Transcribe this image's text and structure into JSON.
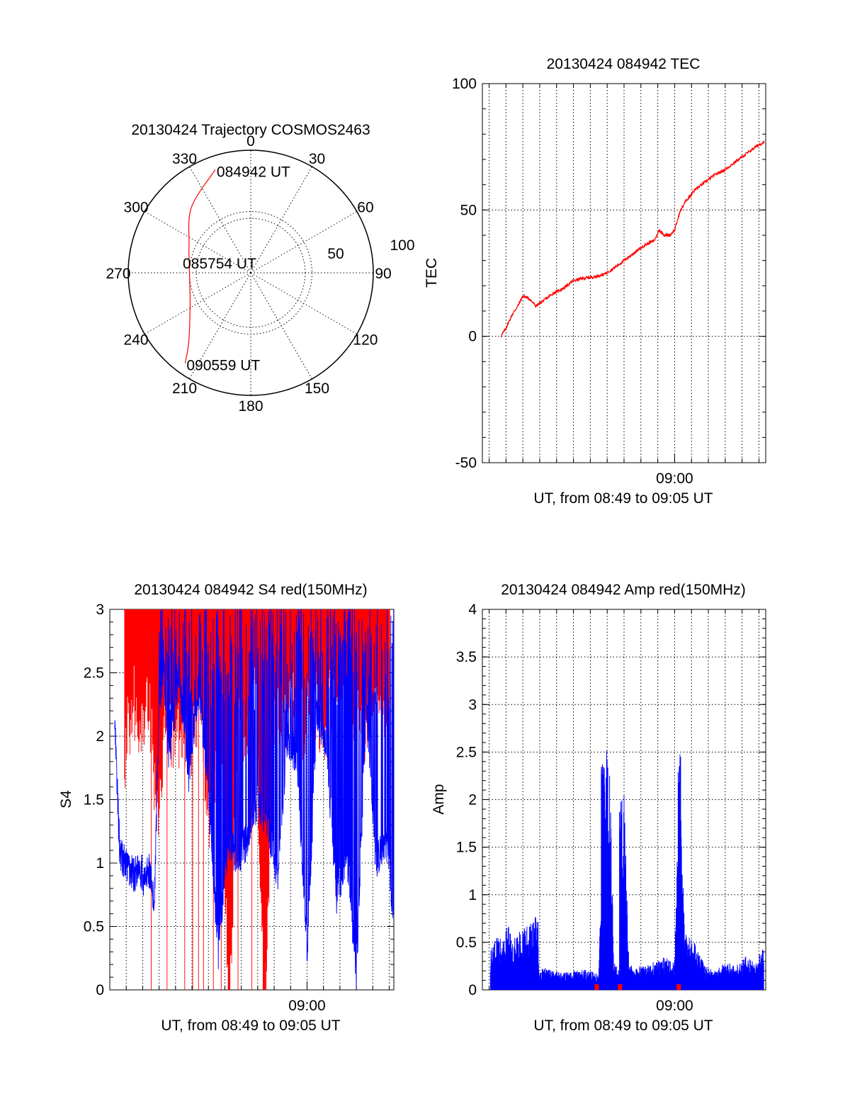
{
  "colors": {
    "red": "#ff0000",
    "blue": "#0000ff",
    "axis": "#000000",
    "background": "#ffffff"
  },
  "chart_data": [
    {
      "id": "trajectory",
      "type": "scatter",
      "projection": "polar",
      "title": "20130424 Trajectory COSMOS2463",
      "azimuth_labels": [
        "0",
        "30",
        "60",
        "90",
        "120",
        "150",
        "180",
        "210",
        "240",
        "270",
        "300",
        "330"
      ],
      "radius_labels": [
        "50",
        "100"
      ],
      "elevation_circles": [
        90,
        50,
        0
      ],
      "grid": true,
      "trajectory": {
        "color": "#ff0000",
        "points": [
          {
            "az": 341,
            "el": 10
          },
          {
            "az": 318,
            "el": 25
          },
          {
            "az": 295,
            "el": 40
          },
          {
            "az": 270,
            "el": 45
          },
          {
            "az": 243,
            "el": 40
          },
          {
            "az": 222,
            "el": 22
          },
          {
            "az": 216,
            "el": 8
          }
        ]
      },
      "annotations": [
        {
          "text": "084942 UT",
          "az": 341,
          "el": 10
        },
        {
          "text": "085754 UT",
          "az": 270,
          "el": 90
        },
        {
          "text": "090559 UT",
          "az": 216,
          "el": 8
        }
      ]
    },
    {
      "id": "tec",
      "type": "line",
      "title": "20130424 084942 TEC",
      "xlabel": "UT, from 08:49 to 09:05 UT",
      "ylabel": "TEC",
      "x_tick_labels": [
        {
          "time": "09:00",
          "value": 9.0
        }
      ],
      "x_range": [
        8.81,
        9.09
      ],
      "ylim": [
        -50,
        100
      ],
      "yticks": [
        -50,
        0,
        50,
        100
      ],
      "grid": true,
      "series": [
        {
          "color": "#ff0000",
          "x": [
            8.8283,
            8.833,
            8.84,
            8.845,
            8.85,
            8.856,
            8.863,
            8.87,
            8.88,
            8.89,
            8.9,
            8.91,
            8.92,
            8.93,
            8.94,
            8.95,
            8.96,
            8.97,
            8.98,
            8.985,
            8.99,
            8.995,
            9.0,
            9.005,
            9.01,
            9.02,
            9.03,
            9.04,
            9.05,
            9.06,
            9.07,
            9.08,
            9.0883
          ],
          "y": [
            0,
            3,
            9,
            12,
            16,
            15,
            12,
            14,
            17,
            19,
            22,
            23,
            23.5,
            24.5,
            27,
            30,
            33,
            36,
            38,
            42,
            40,
            40,
            42,
            49,
            53,
            58,
            61,
            64,
            66,
            69,
            72,
            75,
            77
          ]
        }
      ]
    },
    {
      "id": "s4",
      "type": "line",
      "title": "20130424 084942 S4 red(150MHz)",
      "xlabel": "UT, from 08:49 to 09:05 UT",
      "ylabel": "S4",
      "x_tick_labels": [
        {
          "time": "09:00",
          "value": 9.0
        }
      ],
      "x_range": [
        8.8,
        9.088
      ],
      "ylim": [
        0,
        3
      ],
      "yticks": [
        0,
        0.5,
        1,
        1.5,
        2,
        2.5,
        3
      ],
      "grid": true,
      "series": [
        {
          "color": "#ff0000",
          "x": [
            8.815,
            8.823,
            8.832,
            8.84,
            8.848,
            8.857,
            8.866,
            8.874,
            8.882,
            8.892,
            8.902,
            8.912,
            8.921,
            8.93,
            8.94,
            8.948,
            8.957,
            8.966,
            8.975,
            8.985,
            8.996,
            9.006,
            9.016,
            9.026,
            9.036,
            9.046,
            9.056,
            9.066,
            9.076,
            9.084
          ],
          "y": [
            2.15,
            2.6,
            2.35,
            2.55,
            1.65,
            2.5,
            2.25,
            2.4,
            2.2,
            2.5,
            1.5,
            2.35,
            0.0,
            2.45,
            2.2,
            2.6,
            0.0,
            2.5,
            2.3,
            2.55,
            2.4,
            2.6,
            2.35,
            2.65,
            2.45,
            2.55,
            2.3,
            2.6,
            2.4,
            2.2
          ]
        },
        {
          "color": "#0000ff",
          "x": [
            8.805,
            8.81,
            8.815,
            8.82,
            8.825,
            8.83,
            8.835,
            8.84,
            8.845,
            8.85,
            8.855,
            8.86,
            8.87,
            8.88,
            8.89,
            8.9,
            8.91,
            8.92,
            8.93,
            8.94,
            8.95,
            8.96,
            8.97,
            8.98,
            8.99,
            9.0,
            9.01,
            9.02,
            9.03,
            9.04,
            9.05,
            9.06,
            9.07,
            9.08,
            9.088
          ],
          "y": [
            2.1,
            1.1,
            1.0,
            0.95,
            0.9,
            1.0,
            0.85,
            0.95,
            0.65,
            2.3,
            2.5,
            1.8,
            2.5,
            1.7,
            2.4,
            1.6,
            0.3,
            1.2,
            1.0,
            1.2,
            1.5,
            1.3,
            0.9,
            2.0,
            1.8,
            0.3,
            2.2,
            1.9,
            0.7,
            1.1,
            0.1,
            2.3,
            1.0,
            1.2,
            0.6
          ]
        }
      ]
    },
    {
      "id": "amp",
      "type": "line",
      "title": "20130424 084942 Amp red(150MHz)",
      "xlabel": "UT, from 08:49 to 09:05 UT",
      "ylabel": "Amp",
      "x_tick_labels": [
        {
          "time": "09:00",
          "value": 9.0
        }
      ],
      "x_range": [
        8.81,
        9.09
      ],
      "ylim": [
        0,
        4
      ],
      "yticks": [
        0,
        0.5,
        1,
        1.5,
        2,
        2.5,
        3,
        3.5,
        4
      ],
      "grid": true,
      "series": [
        {
          "color": "#0000ff",
          "x": [
            8.818,
            8.825,
            8.83,
            8.835,
            8.84,
            8.845,
            8.85,
            8.855,
            8.86,
            8.865,
            8.866,
            8.87,
            8.88,
            8.89,
            8.9,
            8.91,
            8.92,
            8.925,
            8.93,
            8.935,
            8.94,
            8.945,
            8.95,
            8.955,
            8.96,
            8.965,
            8.97,
            8.98,
            8.99,
            9.0,
            9.005,
            9.01,
            9.02,
            9.03,
            9.04,
            9.05,
            9.06,
            9.07,
            9.08,
            9.088
          ],
          "y": [
            0.4,
            0.6,
            0.5,
            0.7,
            0.55,
            0.6,
            0.65,
            0.7,
            0.75,
            0.8,
            0.2,
            0.25,
            0.2,
            0.18,
            0.2,
            0.22,
            0.2,
            0.15,
            2.45,
            2.75,
            0.3,
            0.2,
            2.05,
            0.3,
            0.2,
            0.25,
            0.25,
            0.3,
            0.35,
            0.3,
            2.55,
            0.6,
            0.5,
            0.25,
            0.2,
            0.3,
            0.25,
            0.35,
            0.3,
            0.45
          ]
        },
        {
          "color": "#ff0000",
          "x": [
            8.923,
            8.946,
            9.004
          ],
          "y": [
            0.06,
            0.06,
            0.06
          ]
        }
      ]
    }
  ]
}
